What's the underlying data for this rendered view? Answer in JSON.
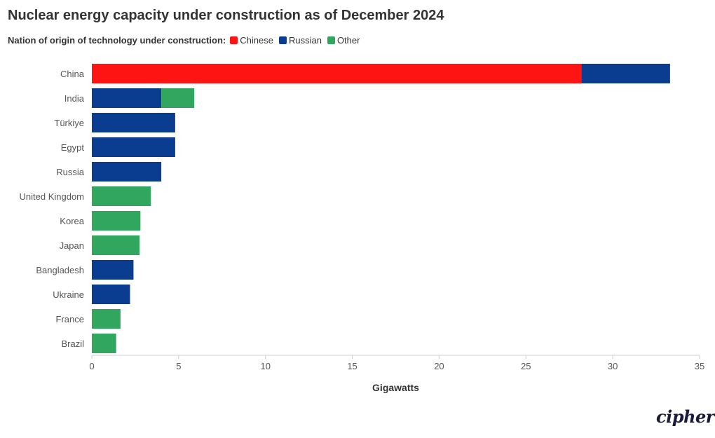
{
  "title": "Nuclear energy capacity under construction as of December 2024",
  "legend": {
    "title": "Nation of origin of technology under construction:",
    "items": [
      {
        "label": "Chinese",
        "color": "#ff1414"
      },
      {
        "label": "Russian",
        "color": "#0a3d8f"
      },
      {
        "label": "Other",
        "color": "#30a65f"
      }
    ]
  },
  "logo_text": "cipher",
  "chart_data": {
    "type": "bar",
    "orientation": "horizontal",
    "stacked": true,
    "categories": [
      "China",
      "India",
      "Türkiye",
      "Egypt",
      "Russia",
      "United Kingdom",
      "Korea",
      "Japan",
      "Bangladesh",
      "Ukraine",
      "France",
      "Brazil"
    ],
    "series": [
      {
        "name": "Chinese",
        "color": "#ff1414",
        "values": [
          28.2,
          0,
          0,
          0,
          0,
          0,
          0,
          0,
          0,
          0,
          0,
          0
        ]
      },
      {
        "name": "Russian",
        "color": "#0a3d8f",
        "values": [
          5.1,
          4.0,
          4.8,
          4.8,
          4.0,
          0,
          0,
          0,
          2.4,
          2.2,
          0,
          0
        ]
      },
      {
        "name": "Other",
        "color": "#30a65f",
        "values": [
          0,
          1.9,
          0,
          0,
          0,
          3.4,
          2.8,
          2.75,
          0,
          0,
          1.65,
          1.4
        ]
      }
    ],
    "xlabel": "Gigawatts",
    "xlim": [
      0,
      35
    ],
    "xticks": [
      0,
      5,
      10,
      15,
      20,
      25,
      30,
      35
    ],
    "grid": false,
    "legend_position": "top-left"
  }
}
